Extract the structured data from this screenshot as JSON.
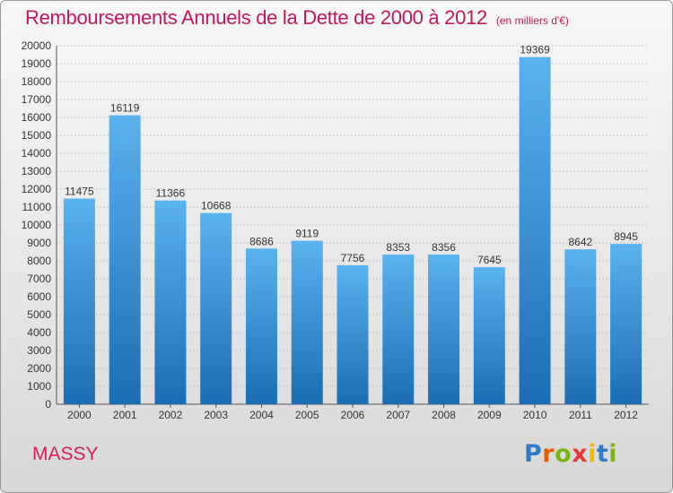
{
  "title": "Remboursements Annuels de la Dette de 2000 à 2012",
  "subtitle": "(en milliers d'€)",
  "city": "MASSY",
  "logo": {
    "letters": [
      "P",
      "r",
      "o",
      "x",
      "i",
      "t",
      "i"
    ],
    "colors": [
      "#2e7cc8",
      "#e65c00",
      "#7cb518",
      "#e53935",
      "#f5b800",
      "#2e7cc8",
      "#7cb518"
    ]
  },
  "colors": {
    "title": "#c2185b",
    "city": "#d81b60",
    "bar_light": "#5ab2ee",
    "bar_dark": "#1c6db3"
  },
  "chart_data": {
    "type": "bar",
    "categories": [
      "2000",
      "2001",
      "2002",
      "2003",
      "2004",
      "2005",
      "2006",
      "2007",
      "2008",
      "2009",
      "2010",
      "2011",
      "2012"
    ],
    "values": [
      11475,
      16119,
      11366,
      10668,
      8686,
      9119,
      7756,
      8353,
      8356,
      7645,
      19369,
      8642,
      8945
    ],
    "ylim": [
      0,
      20000
    ],
    "yticks": [
      0,
      1000,
      2000,
      3000,
      4000,
      5000,
      6000,
      7000,
      8000,
      9000,
      10000,
      11000,
      12000,
      13000,
      14000,
      15000,
      16000,
      17000,
      18000,
      19000,
      20000
    ],
    "grid": true,
    "data_labels": true
  }
}
